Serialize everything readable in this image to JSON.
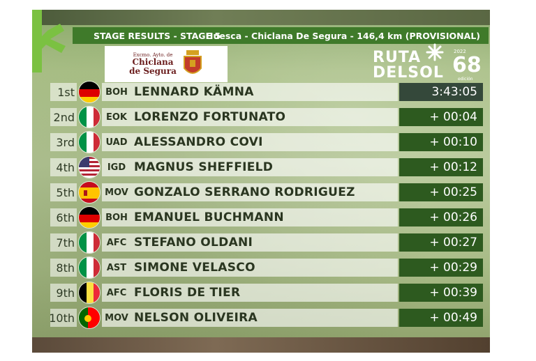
{
  "header": {
    "title": "STAGE RESULTS - STAGE 5",
    "route": "Huesca - Chiclana De Segura - 146,4 km (PROVISIONAL)"
  },
  "sponsor": {
    "line1": "Excmo. Ayto. de",
    "line2": "Chiclana",
    "line3": "de Segura"
  },
  "brand": {
    "line1": "RUTA",
    "line2": "DELSOL",
    "year": "2022",
    "edition": "68",
    "edition_label": "edición"
  },
  "results": [
    {
      "pos": "1st",
      "flag": "germany-flag",
      "team": "BOH",
      "name": "LENNARD KÄMNA",
      "time": "3:43:05"
    },
    {
      "pos": "2nd",
      "flag": "italy-flag",
      "team": "EOK",
      "name": "LORENZO FORTUNATO",
      "time": "+ 00:04"
    },
    {
      "pos": "3rd",
      "flag": "italy-flag",
      "team": "UAD",
      "name": "ALESSANDRO COVI",
      "time": "+ 00:10"
    },
    {
      "pos": "4th",
      "flag": "usa-flag",
      "team": "IGD",
      "name": "MAGNUS SHEFFIELD",
      "time": "+ 00:12"
    },
    {
      "pos": "5th",
      "flag": "spain-flag",
      "team": "MOV",
      "name": "GONZALO SERRANO RODRIGUEZ",
      "time": "+ 00:25"
    },
    {
      "pos": "6th",
      "flag": "germany-flag",
      "team": "BOH",
      "name": "EMANUEL BUCHMANN",
      "time": "+ 00:26"
    },
    {
      "pos": "7th",
      "flag": "italy-flag",
      "team": "AFC",
      "name": "STEFANO OLDANI",
      "time": "+ 00:27"
    },
    {
      "pos": "8th",
      "flag": "italy-flag",
      "team": "AST",
      "name": "SIMONE VELASCO",
      "time": "+ 00:29"
    },
    {
      "pos": "9th",
      "flag": "belgium-flag",
      "team": "AFC",
      "name": "FLORIS DE TIER",
      "time": "+ 00:39"
    },
    {
      "pos": "10th",
      "flag": "portugal-flag",
      "team": "MOV",
      "name": "NELSON OLIVEIRA",
      "time": "+ 00:49"
    }
  ],
  "colors": {
    "header_green": "#3f7a2a",
    "time_box": "#2d5a1f",
    "brand_star": "#7bc142"
  }
}
